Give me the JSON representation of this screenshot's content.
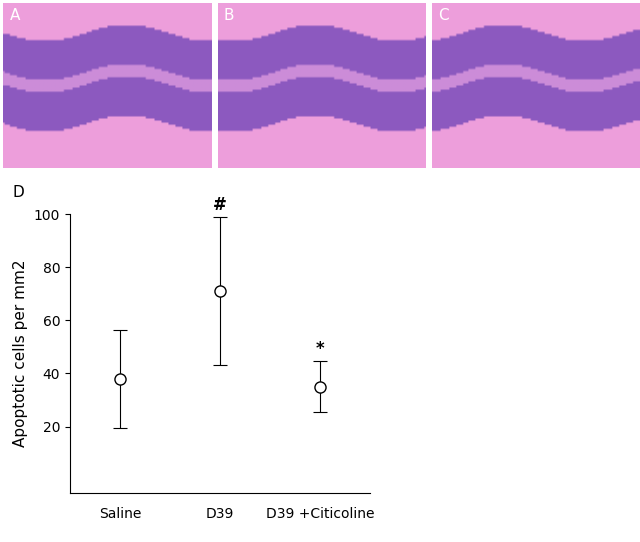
{
  "panel_labels": [
    "A",
    "B",
    "C",
    "D"
  ],
  "chart_data": {
    "type": "scatter",
    "ylabel": "Apoptotic cells per mm2",
    "categories": [
      "Saline",
      "D39",
      "D39 +Citicoline"
    ],
    "values": [
      38,
      71,
      35
    ],
    "errors": [
      18.5,
      28,
      9.7
    ],
    "color": "#000000",
    "marker": "o",
    "ylim": [
      -5,
      100
    ],
    "yticks": [
      20,
      40,
      60,
      80,
      100
    ],
    "annotations": [
      {
        "category": "D39",
        "text": "#"
      },
      {
        "category": "D39 +Citicoline",
        "text": "*"
      }
    ]
  }
}
